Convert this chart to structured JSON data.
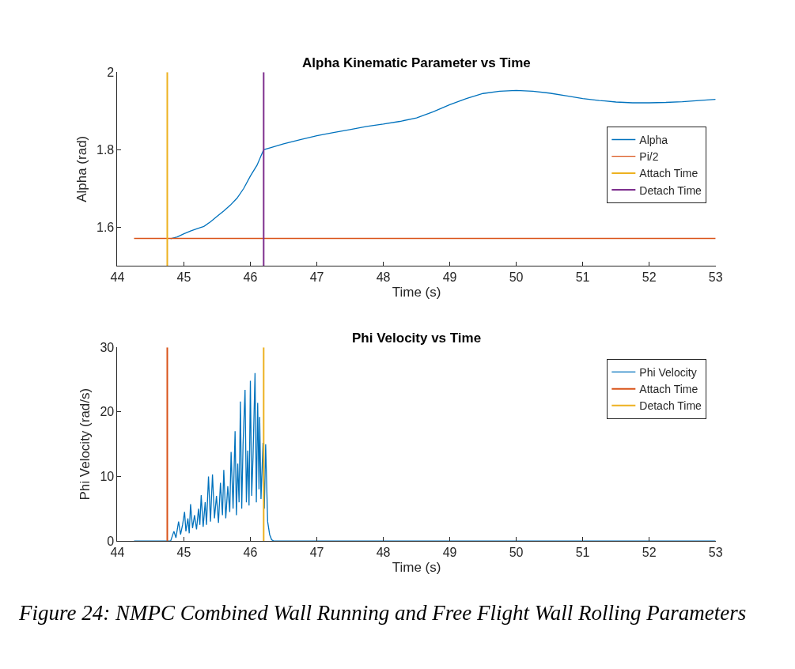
{
  "chart_data": [
    {
      "type": "line",
      "title": "Alpha Kinematic Parameter vs Time",
      "xlabel": "Time (s)",
      "ylabel": "Alpha (rad)",
      "xlim": [
        44,
        53
      ],
      "xticks": [
        44,
        45,
        46,
        47,
        48,
        49,
        50,
        51,
        52,
        53
      ],
      "ylim": [
        1.5,
        2
      ],
      "yticks": [
        1.6,
        1.8,
        2
      ],
      "legend": "right",
      "marker": "none",
      "line_style": "solid",
      "series": [
        {
          "name": "Alpha",
          "color": "#0072bd",
          "x": [
            44.8,
            44.9,
            45.0,
            45.1,
            45.2,
            45.3,
            45.4,
            45.5,
            45.6,
            45.7,
            45.8,
            45.9,
            46.0,
            46.1,
            46.2,
            46.3,
            46.5,
            46.75,
            47.0,
            47.25,
            47.5,
            47.75,
            48.0,
            48.25,
            48.5,
            48.75,
            49.0,
            49.25,
            49.5,
            49.75,
            50.0,
            50.25,
            50.5,
            50.75,
            51.0,
            51.25,
            51.5,
            51.75,
            52.0,
            52.25,
            52.5,
            52.75,
            53.0
          ],
          "values": [
            1.57,
            1.575,
            1.583,
            1.59,
            1.596,
            1.602,
            1.614,
            1.628,
            1.642,
            1.657,
            1.675,
            1.7,
            1.732,
            1.76,
            1.8,
            1.805,
            1.815,
            1.826,
            1.836,
            1.844,
            1.852,
            1.86,
            1.866,
            1.873,
            1.882,
            1.898,
            1.916,
            1.932,
            1.945,
            1.951,
            1.953,
            1.951,
            1.946,
            1.939,
            1.932,
            1.927,
            1.923,
            1.921,
            1.921,
            1.922,
            1.924,
            1.927,
            1.93
          ]
        },
        {
          "name": "Pi/2",
          "color": "#d95319",
          "x": [
            44.25,
            53
          ],
          "values": [
            1.571,
            1.571
          ]
        },
        {
          "name": "Attach Time",
          "color": "#edb120",
          "x": [
            44.75,
            44.75
          ],
          "values": [
            1.5,
            2
          ]
        },
        {
          "name": "Detach Time",
          "color": "#7e2f8e",
          "x": [
            46.2,
            46.2
          ],
          "values": [
            1.5,
            2
          ]
        }
      ]
    },
    {
      "type": "line",
      "title": "Phi Velocity vs Time",
      "xlabel": "Time (s)",
      "ylabel": "Phi Velocity (rad/s)",
      "xlim": [
        44,
        53
      ],
      "xticks": [
        44,
        45,
        46,
        47,
        48,
        49,
        50,
        51,
        52,
        53
      ],
      "ylim": [
        0,
        30
      ],
      "yticks": [
        0,
        10,
        20,
        30
      ],
      "legend": "top right",
      "marker": "none",
      "line_style": "solid",
      "series": [
        {
          "name": "Phi Velocity",
          "color": "#0072bd",
          "x": [
            44.25,
            44.8,
            44.85,
            44.88,
            44.92,
            44.95,
            44.98,
            45.01,
            45.03,
            45.06,
            45.08,
            45.1,
            45.13,
            45.16,
            45.19,
            45.22,
            45.24,
            45.26,
            45.29,
            45.32,
            45.34,
            45.37,
            45.4,
            45.43,
            45.46,
            45.49,
            45.52,
            45.55,
            45.58,
            45.6,
            45.63,
            45.66,
            45.69,
            45.71,
            45.74,
            45.77,
            45.79,
            45.81,
            45.83,
            45.85,
            45.87,
            45.89,
            45.92,
            45.94,
            45.96,
            45.98,
            46.0,
            46.02,
            46.04,
            46.07,
            46.09,
            46.11,
            46.13,
            46.14,
            46.16,
            46.19,
            46.21,
            46.23,
            46.26,
            46.29,
            46.32,
            46.35,
            53
          ],
          "values": [
            0,
            0,
            1.5,
            0.5,
            3,
            1,
            2.5,
            4.5,
            1.5,
            3.5,
            1.2,
            5.7,
            2,
            4,
            1.8,
            5,
            2.5,
            7.1,
            2.2,
            6,
            2.5,
            10,
            3,
            10.3,
            3.5,
            7,
            2.8,
            9,
            4,
            11,
            3.5,
            8.5,
            4.5,
            13.8,
            5,
            17,
            4,
            12,
            6,
            21.6,
            5,
            15,
            23.4,
            6,
            14,
            5.5,
            24.8,
            7,
            13,
            26,
            6,
            21.4,
            8,
            19.2,
            6.5,
            15.2,
            5,
            15,
            3,
            1,
            0.2,
            0,
            0
          ]
        },
        {
          "name": "Attach Time",
          "color": "#d95319",
          "x": [
            44.75,
            44.75
          ],
          "values": [
            0,
            30
          ]
        },
        {
          "name": "Detach Time",
          "color": "#edb120",
          "x": [
            46.2,
            46.2
          ],
          "values": [
            0,
            30
          ]
        }
      ],
      "annotations": [
        "Figure 24: NMPC Combined Wall Running and Free Flight Wall Rolling Parameters"
      ]
    }
  ]
}
